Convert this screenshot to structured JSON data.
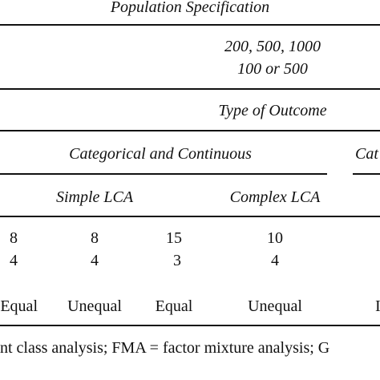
{
  "table": {
    "population_specification": "Population Specification",
    "sample_sizes": "200, 500, 1000",
    "alt_sizes": "100 or 500",
    "type_of_outcome": "Type of Outcome",
    "group_cat_cont": "Categorical and Continuous",
    "group_cat_trunc": "Cat",
    "simple_lca": "Simple LCA",
    "complex_lca": "Complex LCA",
    "row1": [
      "8",
      "8",
      "15",
      "10"
    ],
    "row2": [
      "4",
      "4",
      "3",
      "4"
    ],
    "row3": [
      "Equal",
      "Unequal",
      "Equal",
      "Unequal"
    ],
    "row3_trunc_right": "I",
    "footnote": "nt class analysis; FMA = factor mixture analysis; G"
  }
}
